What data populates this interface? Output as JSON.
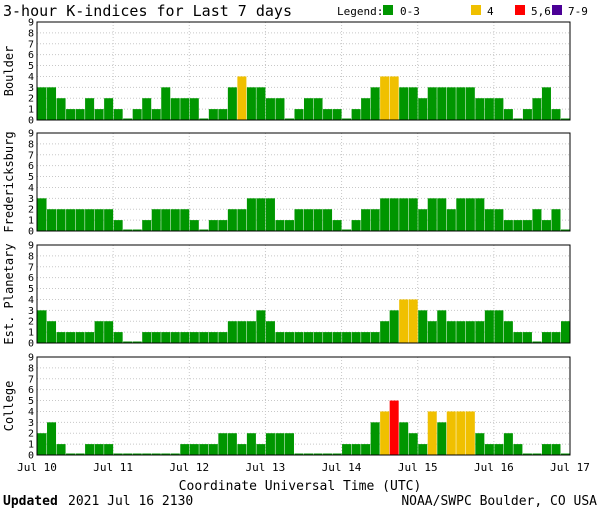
{
  "header": {
    "title": "3-hour K-indices for Last 7 days",
    "legend_label": "Legend:",
    "legend": [
      {
        "label": "0-3",
        "color": "#009600"
      },
      {
        "label": "4",
        "color": "#f0c000"
      },
      {
        "label": "5,6",
        "color": "#ff0000"
      },
      {
        "label": "7-9",
        "color": "#4b0096"
      }
    ]
  },
  "footer": {
    "updated_label": "Updated",
    "updated_value": "2021 Jul 16 2130",
    "source": "NOAA/SWPC Boulder, CO USA"
  },
  "chart_data": {
    "type": "bar",
    "xlabel": "Coordinate Universal Time (UTC)",
    "x_tick_labels": [
      "Jul 10",
      "Jul 11",
      "Jul 12",
      "Jul 13",
      "Jul 14",
      "Jul 15",
      "Jul 16",
      "Jul 17"
    ],
    "ylim": [
      0,
      9
    ],
    "y_ticks": [
      "0",
      "1",
      "2",
      "3",
      "4",
      "5",
      "6",
      "7",
      "8",
      "9"
    ],
    "grid": true,
    "color_scale": [
      {
        "range": "0-3",
        "color": "#009600"
      },
      {
        "range": "4",
        "color": "#f0c000"
      },
      {
        "range": "5,6",
        "color": "#ff0000"
      },
      {
        "range": "7-9",
        "color": "#4b0096"
      }
    ],
    "panels": [
      {
        "name": "Boulder",
        "values": [
          3,
          3,
          2,
          1,
          1,
          2,
          1,
          2,
          1,
          0,
          1,
          2,
          1,
          3,
          2,
          2,
          2,
          0,
          1,
          1,
          3,
          4,
          3,
          3,
          2,
          2,
          0,
          1,
          2,
          2,
          1,
          1,
          0,
          1,
          2,
          3,
          4,
          4,
          3,
          3,
          2,
          3,
          3,
          3,
          3,
          3,
          2,
          2,
          2,
          1,
          0,
          1,
          2,
          3,
          1,
          0
        ]
      },
      {
        "name": "Fredericksburg",
        "values": [
          3,
          2,
          2,
          2,
          2,
          2,
          2,
          2,
          1,
          0,
          0,
          1,
          2,
          2,
          2,
          2,
          1,
          0,
          1,
          1,
          2,
          2,
          3,
          3,
          3,
          1,
          1,
          2,
          2,
          2,
          2,
          1,
          0,
          1,
          2,
          2,
          3,
          3,
          3,
          3,
          2,
          3,
          3,
          2,
          3,
          3,
          3,
          2,
          2,
          1,
          1,
          1,
          2,
          1,
          2,
          0
        ]
      },
      {
        "name": "Est. Planetary",
        "values": [
          3,
          2,
          1,
          1,
          1,
          1,
          2,
          2,
          1,
          0,
          0,
          1,
          1,
          1,
          1,
          1,
          1,
          1,
          1,
          1,
          2,
          2,
          2,
          3,
          2,
          1,
          1,
          1,
          1,
          1,
          1,
          1,
          1,
          1,
          1,
          1,
          2,
          3,
          4,
          4,
          3,
          2,
          3,
          2,
          2,
          2,
          2,
          3,
          3,
          2,
          1,
          1,
          0,
          1,
          1,
          2
        ]
      },
      {
        "name": "College",
        "values": [
          2,
          3,
          1,
          0,
          0,
          1,
          1,
          1,
          0,
          0,
          0,
          0,
          0,
          0,
          0,
          1,
          1,
          1,
          1,
          2,
          2,
          1,
          2,
          1,
          2,
          2,
          2,
          0,
          0,
          0,
          0,
          0,
          1,
          1,
          1,
          3,
          4,
          5,
          3,
          2,
          1,
          4,
          3,
          4,
          4,
          4,
          2,
          1,
          1,
          2,
          1,
          0,
          0,
          1,
          1,
          0
        ]
      }
    ]
  }
}
